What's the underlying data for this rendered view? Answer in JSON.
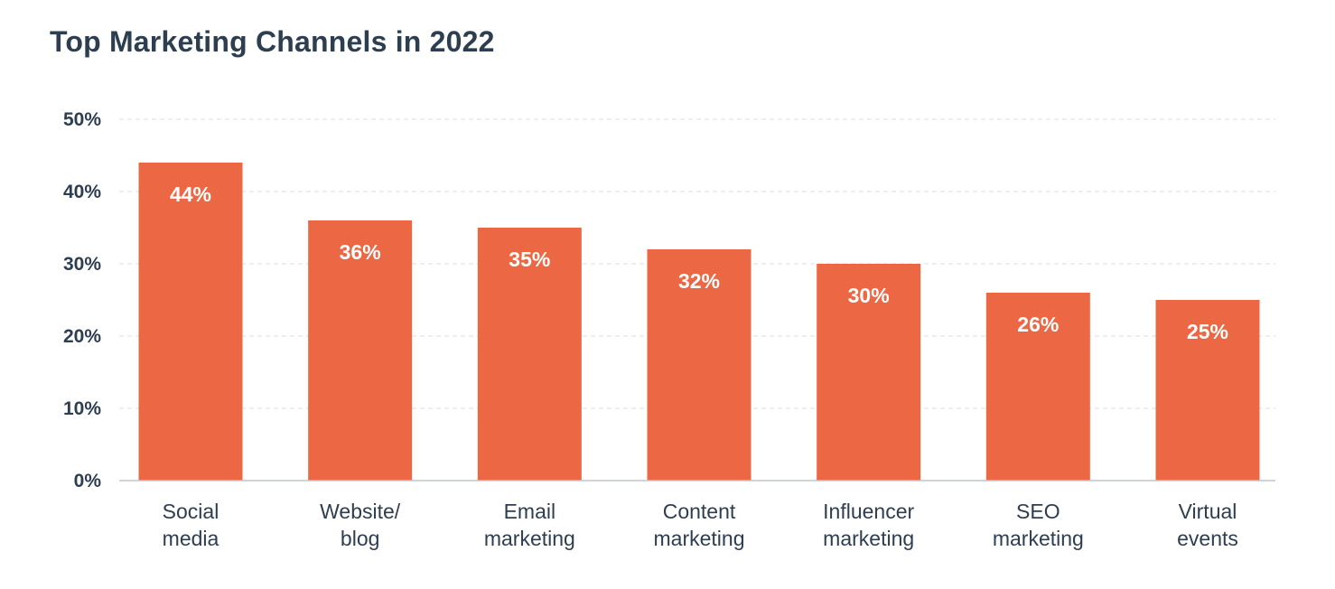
{
  "chart_data": {
    "type": "bar",
    "title": "Top Marketing Channels in 2022",
    "xlabel": "",
    "ylabel": "",
    "categories": [
      [
        "Social",
        "media"
      ],
      [
        "Website/",
        "blog"
      ],
      [
        "Email",
        "marketing"
      ],
      [
        "Content",
        "marketing"
      ],
      [
        "Influencer",
        "marketing"
      ],
      [
        "SEO",
        "marketing"
      ],
      [
        "Virtual",
        "events"
      ]
    ],
    "values": [
      44,
      36,
      35,
      32,
      30,
      26,
      25
    ],
    "data_labels": [
      "44%",
      "36%",
      "35%",
      "32%",
      "30%",
      "26%",
      "25%"
    ],
    "ylim": [
      0,
      50
    ],
    "yticks": [
      0,
      10,
      20,
      30,
      40,
      50
    ],
    "ytick_labels": [
      "0%",
      "10%",
      "20%",
      "30%",
      "40%",
      "50%"
    ],
    "grid": true,
    "legend": "none",
    "bar_color": "#ec6744"
  }
}
